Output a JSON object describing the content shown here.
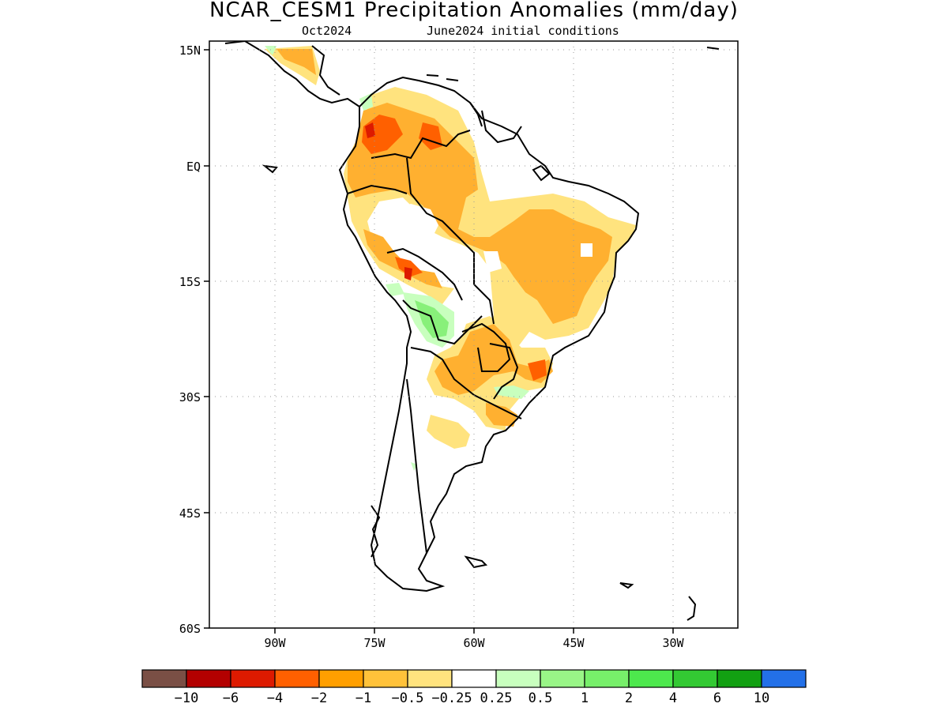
{
  "title": "NCAR_CESM1 Precipitation Anomalies (mm/day)",
  "subtitle_left": "Oct2024",
  "subtitle_right": "June2024 initial conditions",
  "lat_labels": [
    "15N",
    "EQ",
    "15S",
    "30S",
    "45S",
    "60S"
  ],
  "lon_labels": [
    "90W",
    "75W",
    "60W",
    "45W",
    "30W"
  ],
  "colorbar": {
    "colors": [
      "#7a4f45",
      "#b30000",
      "#dd1a00",
      "#ff6000",
      "#ff9f00",
      "#ffc23a",
      "#ffe37e",
      "#ffffff",
      "#c8ffbe",
      "#99f587",
      "#77ef6a",
      "#4de84d",
      "#33c933",
      "#12a012",
      "#2370e8"
    ],
    "labels": [
      "−10",
      "−6",
      "−4",
      "−2",
      "−1",
      "−0.5",
      "−0.25",
      "0.25",
      "0.5",
      "1",
      "2",
      "4",
      "6",
      "10"
    ]
  },
  "anomaly_colors": {
    "strong_dry": "#ff6000",
    "moderate_dry": "#ffb030",
    "weak_dry": "#ffe37e",
    "weak_wet": "#c8ffbe",
    "moderate_wet": "#88f07a",
    "extreme_dry": "#dd1a00"
  }
}
